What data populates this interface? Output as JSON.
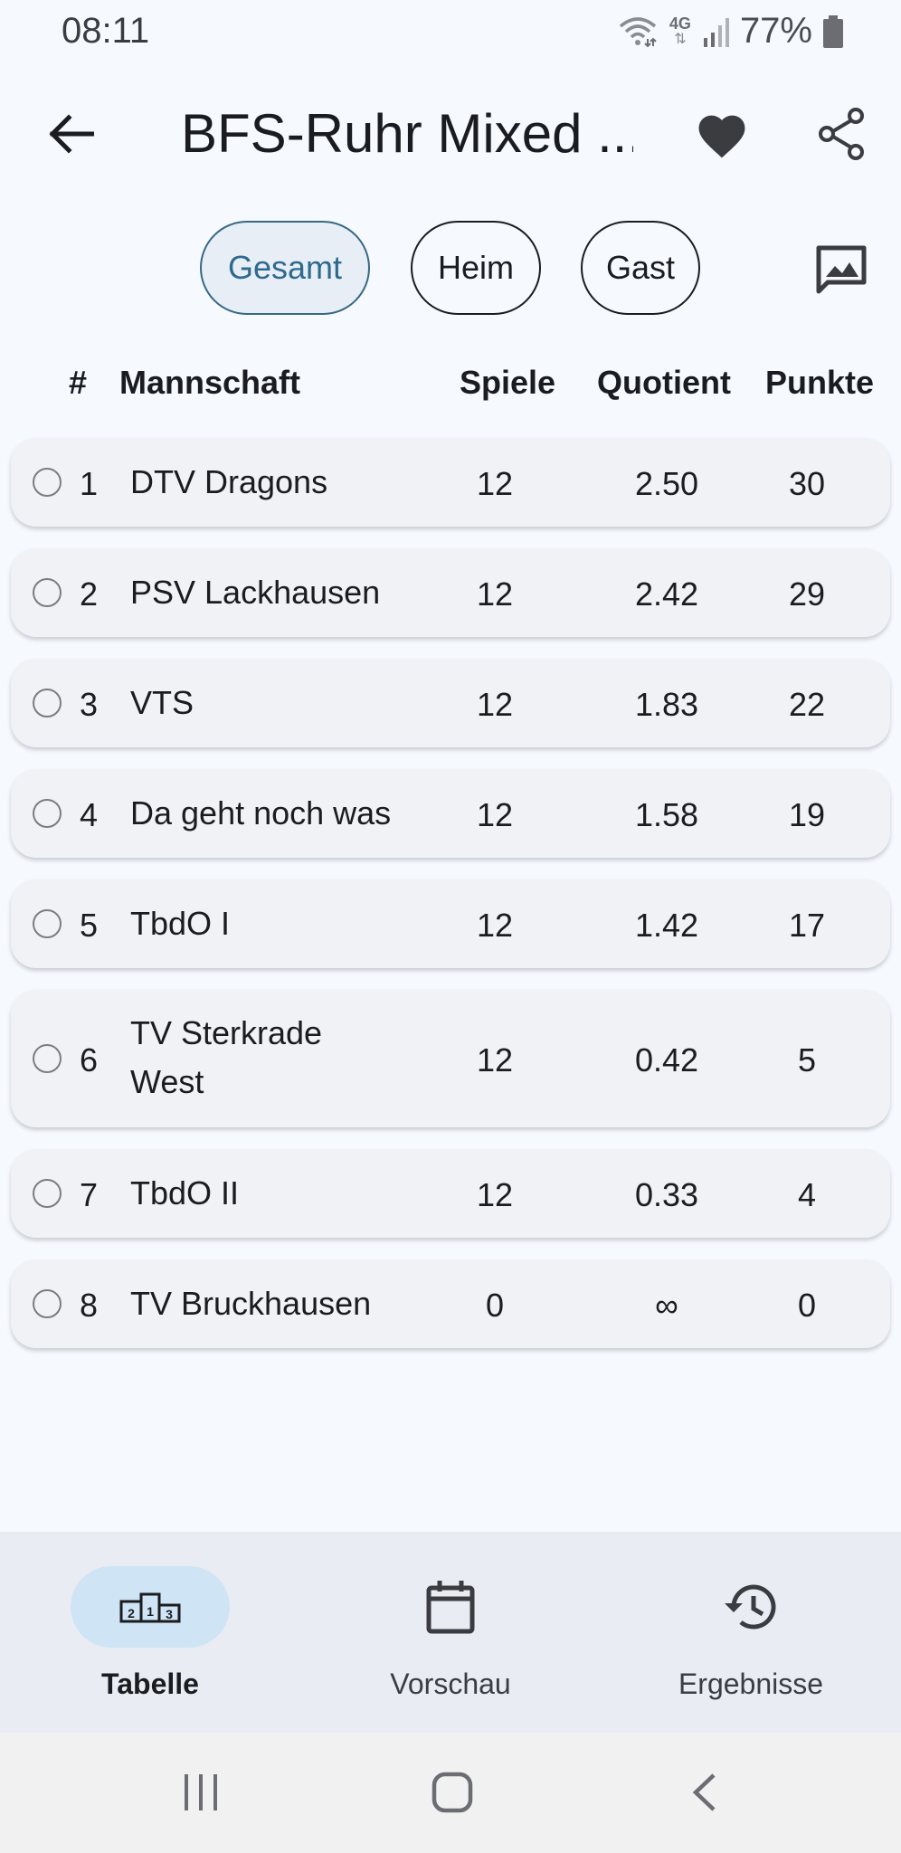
{
  "status_bar": {
    "time": "08:11",
    "network": "4G",
    "battery": "77%"
  },
  "app_bar": {
    "title": "BFS-Ruhr Mixed ..."
  },
  "filters": {
    "gesamt": "Gesamt",
    "heim": "Heim",
    "gast": "Gast",
    "active": "Gesamt"
  },
  "table": {
    "headers": {
      "rank": "#",
      "team": "Mannschaft",
      "games": "Spiele",
      "quotient": "Quotient",
      "points": "Punkte"
    },
    "rows": [
      {
        "rank": "1",
        "team": "DTV Dragons",
        "games": "12",
        "quotient": "2.50",
        "points": "30"
      },
      {
        "rank": "2",
        "team": "PSV Lackhausen",
        "games": "12",
        "quotient": "2.42",
        "points": "29"
      },
      {
        "rank": "3",
        "team": "VTS",
        "games": "12",
        "quotient": "1.83",
        "points": "22"
      },
      {
        "rank": "4",
        "team": "Da geht noch was",
        "games": "12",
        "quotient": "1.58",
        "points": "19"
      },
      {
        "rank": "5",
        "team": "TbdO I",
        "games": "12",
        "quotient": "1.42",
        "points": "17"
      },
      {
        "rank": "6",
        "team": "TV Sterkrade West",
        "games": "12",
        "quotient": "0.42",
        "points": "5"
      },
      {
        "rank": "7",
        "team": "TbdO II",
        "games": "12",
        "quotient": "0.33",
        "points": "4"
      },
      {
        "rank": "8",
        "team": "TV Bruckhausen",
        "games": "0",
        "quotient": "∞",
        "points": "0"
      }
    ]
  },
  "bottom_nav": {
    "items": [
      {
        "label": "Tabelle",
        "icon": "podium-icon",
        "active": true
      },
      {
        "label": "Vorschau",
        "icon": "calendar-icon",
        "active": false
      },
      {
        "label": "Ergebnisse",
        "icon": "history-icon",
        "active": false
      }
    ]
  },
  "colors": {
    "accent": "#386883",
    "accent_bg": "#e7eef6",
    "nav_indicator": "#cfe4f4",
    "background": "#f6f9fe",
    "card": "#f0f2f6"
  }
}
